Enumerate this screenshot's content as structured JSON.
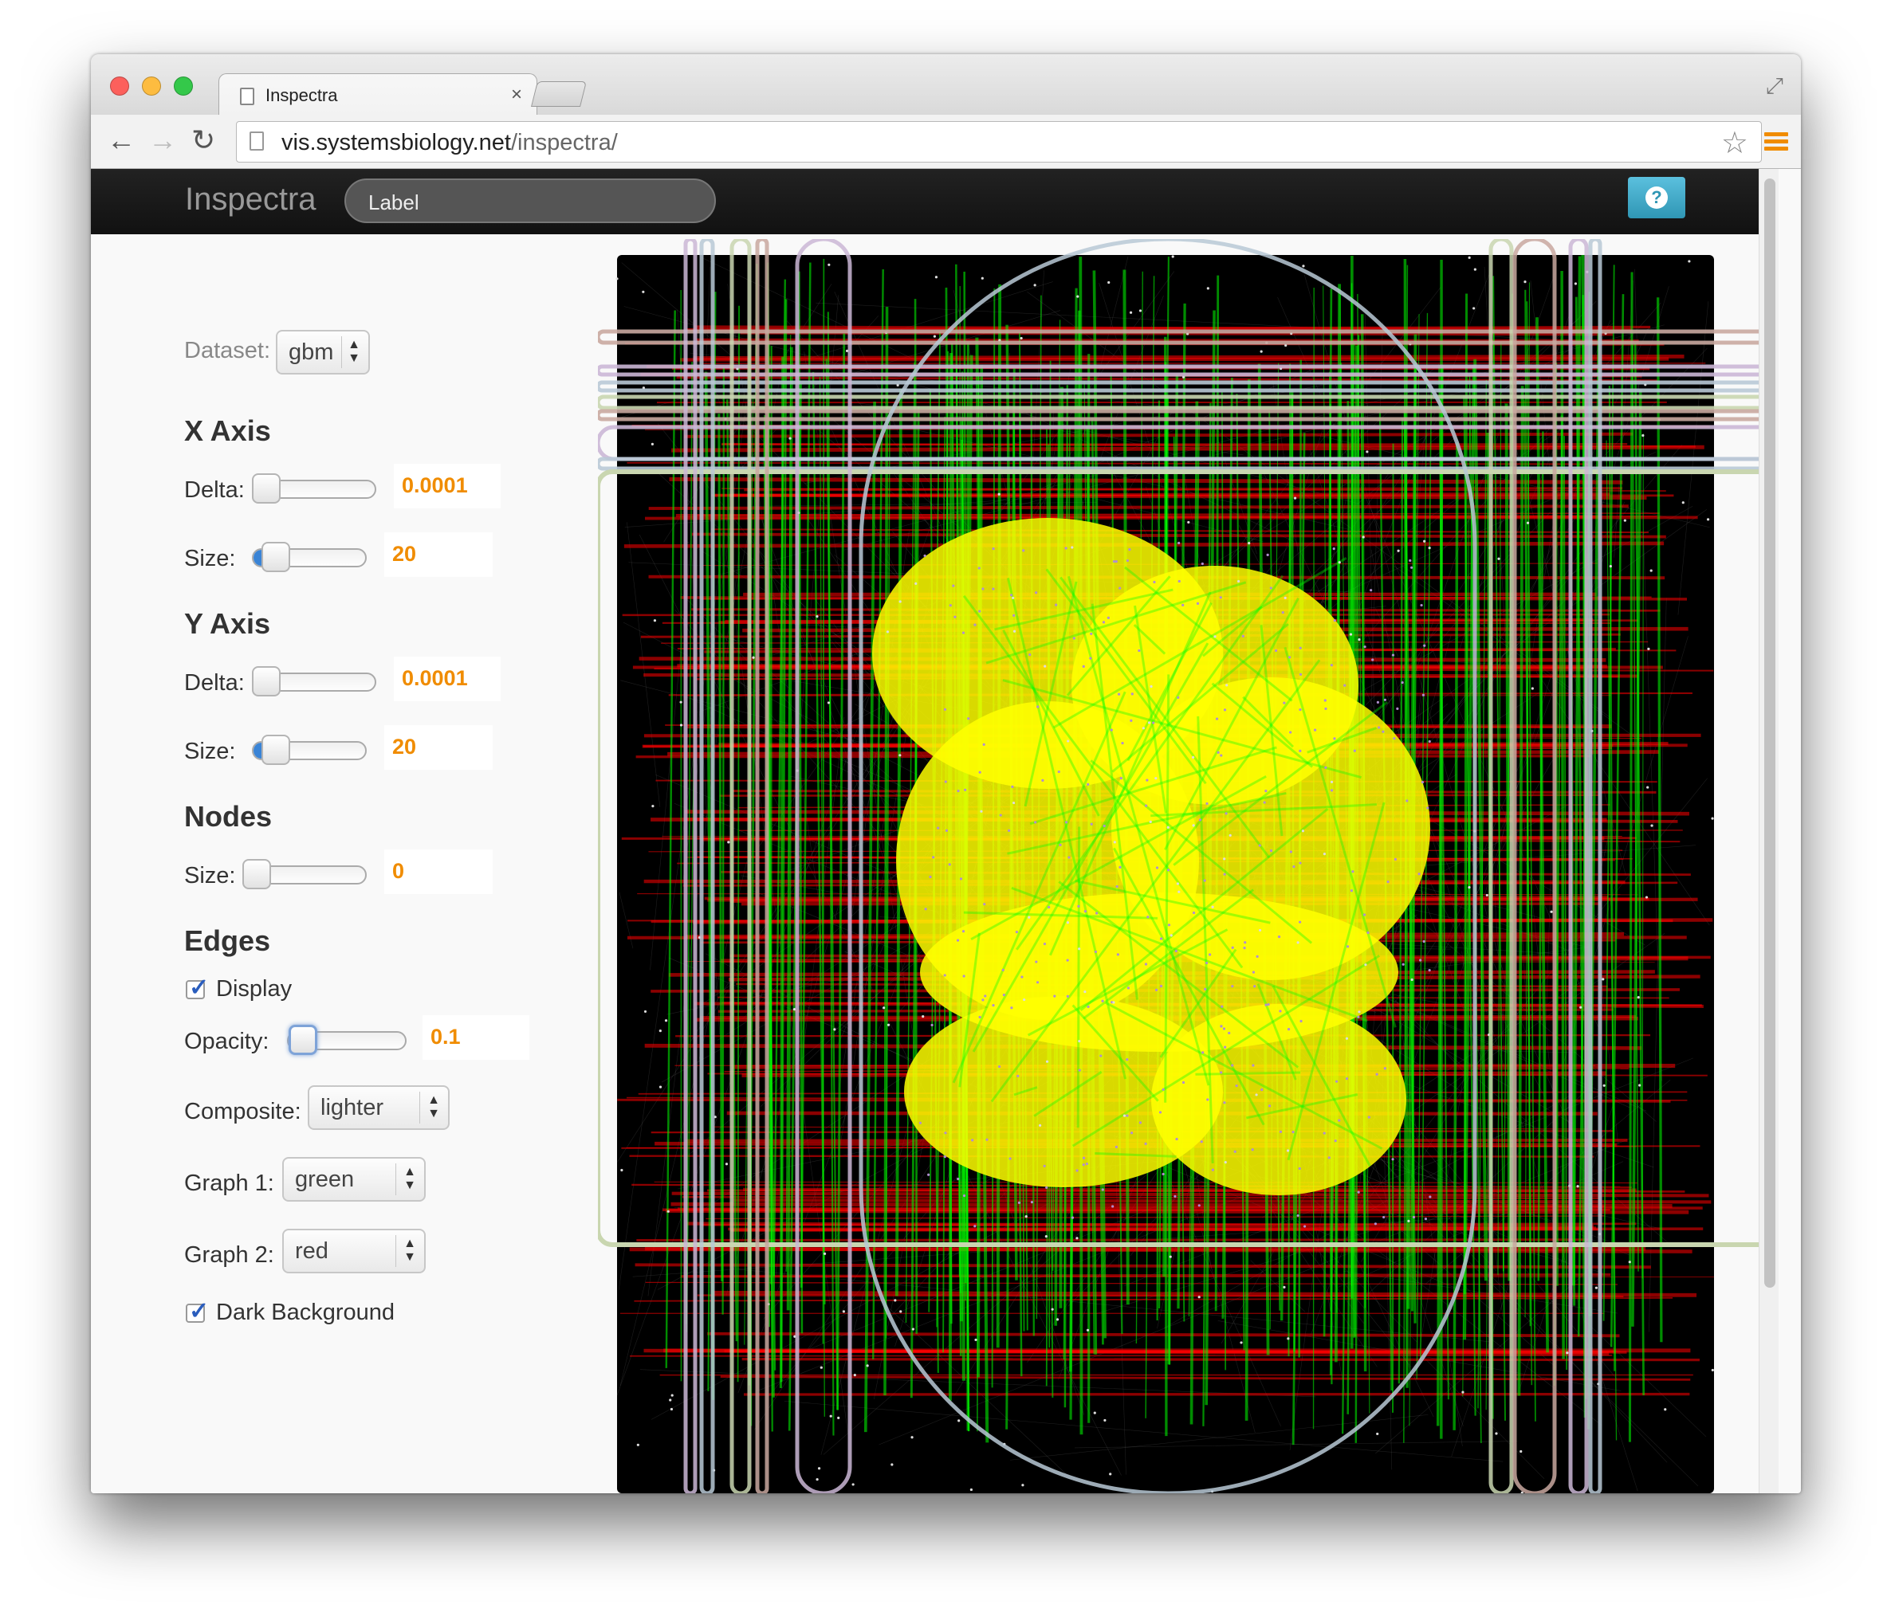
{
  "browser": {
    "tab_title": "Inspectra",
    "tab_close": "×",
    "url_host": "vis.systemsbiology.net",
    "url_path": "/inspectra/",
    "back_icon": "back-arrow-icon",
    "forward_icon": "forward-arrow-icon",
    "reload_icon": "reload-icon",
    "bookmark_icon": "star-icon",
    "menu_icon": "hamburger-menu-icon",
    "traffic_lights": {
      "close": "#fc605c",
      "minimize": "#fdbc40",
      "zoom": "#34c84a"
    }
  },
  "app": {
    "brand": "Inspectra",
    "label_field": "Label",
    "help_icon": "?"
  },
  "sidebar": {
    "dataset_label": "Dataset:",
    "dataset_value": "gbm",
    "x_axis": {
      "heading": "X Axis",
      "delta_label": "Delta:",
      "delta_value": "0.0001",
      "size_label": "Size:",
      "size_value": "20"
    },
    "y_axis": {
      "heading": "Y Axis",
      "delta_label": "Delta:",
      "delta_value": "0.0001",
      "size_label": "Size:",
      "size_value": "20"
    },
    "nodes": {
      "heading": "Nodes",
      "size_label": "Size:",
      "size_value": "0"
    },
    "edges": {
      "heading": "Edges",
      "display_label": "Display",
      "display_checked": true,
      "opacity_label": "Opacity:",
      "opacity_value": "0.1",
      "composite_label": "Composite:",
      "composite_value": "lighter",
      "graph1_label": "Graph 1:",
      "graph1_value": "green",
      "graph2_label": "Graph 2:",
      "graph2_value": "red",
      "dark_bg_label": "Dark Background",
      "dark_bg_checked": true
    }
  },
  "colors": {
    "accent_value": "#f08c00",
    "graph1": "#00ff00",
    "graph2": "#ff0000",
    "overlap": "#ffff00",
    "background": "#000000"
  }
}
